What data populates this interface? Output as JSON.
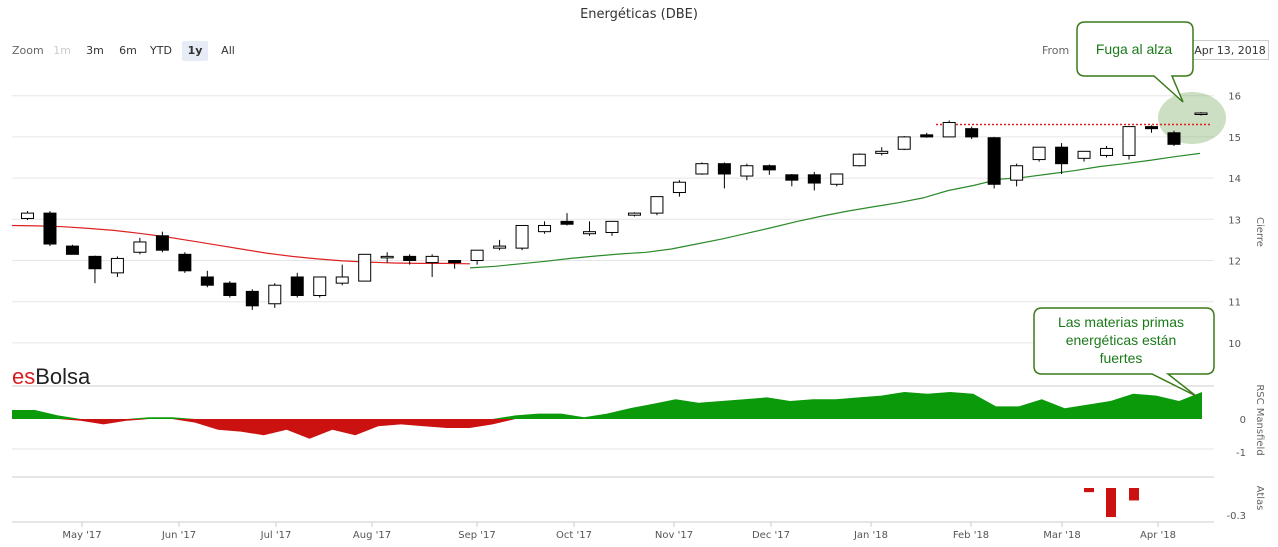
{
  "title": "Energéticas (DBE)",
  "zoom": {
    "label": "Zoom",
    "buttons": [
      {
        "label": "1m",
        "state": "disabled"
      },
      {
        "label": "3m",
        "state": "normal"
      },
      {
        "label": "6m",
        "state": "normal"
      },
      {
        "label": "YTD",
        "state": "normal"
      },
      {
        "label": "1y",
        "state": "active"
      },
      {
        "label": "All",
        "state": "normal"
      }
    ]
  },
  "range": {
    "from_label": "From",
    "from_value": "Apr 13, 2018"
  },
  "logo": {
    "es": "es",
    "bolsa": "Bolsa"
  },
  "annotations": {
    "breakout": "Fuga al alza",
    "strength": [
      "Las materias primas",
      "energéticas están",
      "fuertes"
    ]
  },
  "colors": {
    "up_fill": "#ffffff",
    "down_fill": "#000000",
    "ma_long": "#dd2222",
    "ma_short": "#2a8a2a",
    "rs_pos": "#0a9a0a",
    "rs_neg": "#cc1111",
    "resistance": "#e02020",
    "callout_border": "#3a7a1a"
  },
  "chart_data": [
    {
      "type": "candlestick",
      "name": "price",
      "ylabel": "Cierre",
      "ylim": [
        10,
        16.3
      ],
      "y_ticks": [
        "16",
        "15",
        "14",
        "13",
        "12",
        "11",
        "10"
      ],
      "x_ticks": [
        "May '17",
        "Jun '17",
        "Jul '17",
        "Aug '17",
        "Sep '17",
        "Oct '17",
        "Nov '17",
        "Dec '17",
        "Jan '18",
        "Feb '18",
        "Mar '18",
        "Apr '18"
      ],
      "weeks": [
        "2017-04-21",
        "2017-04-28",
        "2017-05-05",
        "2017-05-12",
        "2017-05-19",
        "2017-05-26",
        "2017-06-02",
        "2017-06-09",
        "2017-06-16",
        "2017-06-23",
        "2017-06-30",
        "2017-07-07",
        "2017-07-14",
        "2017-07-21",
        "2017-07-28",
        "2017-08-04",
        "2017-08-11",
        "2017-08-18",
        "2017-08-25",
        "2017-09-01",
        "2017-09-08",
        "2017-09-15",
        "2017-09-22",
        "2017-09-29",
        "2017-10-06",
        "2017-10-13",
        "2017-10-20",
        "2017-10-27",
        "2017-11-03",
        "2017-11-10",
        "2017-11-17",
        "2017-11-24",
        "2017-12-01",
        "2017-12-08",
        "2017-12-15",
        "2017-12-22",
        "2017-12-29",
        "2018-01-05",
        "2018-01-12",
        "2018-01-19",
        "2018-01-26",
        "2018-02-02",
        "2018-02-09",
        "2018-02-16",
        "2018-02-23",
        "2018-03-02",
        "2018-03-09",
        "2018-03-16",
        "2018-03-23",
        "2018-03-30",
        "2018-04-06",
        "2018-04-13"
      ],
      "ohlc": [
        [
          13.02,
          13.2,
          12.98,
          13.15
        ],
        [
          13.15,
          13.2,
          12.35,
          12.4
        ],
        [
          12.35,
          12.38,
          12.15,
          12.15
        ],
        [
          12.1,
          12.12,
          11.45,
          11.8
        ],
        [
          11.7,
          12.1,
          11.6,
          12.05
        ],
        [
          12.2,
          12.55,
          12.15,
          12.45
        ],
        [
          12.6,
          12.7,
          12.2,
          12.25
        ],
        [
          12.15,
          12.2,
          11.7,
          11.75
        ],
        [
          11.6,
          11.75,
          11.35,
          11.4
        ],
        [
          11.45,
          11.5,
          11.1,
          11.15
        ],
        [
          11.25,
          11.3,
          10.8,
          10.9
        ],
        [
          10.95,
          11.45,
          10.85,
          11.4
        ],
        [
          11.6,
          11.7,
          11.1,
          11.15
        ],
        [
          11.15,
          11.6,
          11.1,
          11.6
        ],
        [
          11.45,
          11.9,
          11.4,
          11.6
        ],
        [
          11.5,
          12.15,
          11.5,
          12.15
        ],
        [
          12.1,
          12.2,
          11.95,
          12.1
        ],
        [
          12.1,
          12.15,
          11.9,
          12.0
        ],
        [
          11.95,
          12.15,
          11.6,
          12.1
        ],
        [
          12.0,
          12.0,
          11.8,
          11.95
        ],
        [
          12.0,
          12.25,
          11.9,
          12.25
        ],
        [
          12.3,
          12.5,
          12.25,
          12.35
        ],
        [
          12.3,
          12.85,
          12.25,
          12.85
        ],
        [
          12.7,
          12.95,
          12.65,
          12.85
        ],
        [
          12.95,
          13.15,
          12.85,
          12.88
        ],
        [
          12.65,
          12.95,
          12.6,
          12.7
        ],
        [
          12.68,
          12.95,
          12.6,
          12.95
        ],
        [
          13.1,
          13.17,
          13.07,
          13.15
        ],
        [
          13.15,
          13.55,
          13.1,
          13.55
        ],
        [
          13.65,
          13.95,
          13.55,
          13.9
        ],
        [
          14.1,
          14.38,
          14.08,
          14.35
        ],
        [
          14.35,
          14.38,
          13.75,
          14.1
        ],
        [
          14.05,
          14.35,
          13.95,
          14.3
        ],
        [
          14.3,
          14.33,
          14.08,
          14.2
        ],
        [
          14.08,
          14.1,
          13.8,
          13.95
        ],
        [
          14.08,
          14.15,
          13.7,
          13.88
        ],
        [
          13.85,
          14.1,
          13.8,
          14.1
        ],
        [
          14.3,
          14.6,
          14.28,
          14.58
        ],
        [
          14.6,
          14.75,
          14.55,
          14.65
        ],
        [
          14.7,
          15.02,
          14.68,
          15.0
        ],
        [
          15.05,
          15.1,
          14.98,
          15.0
        ],
        [
          15.0,
          15.4,
          15.0,
          15.35
        ],
        [
          15.2,
          15.25,
          14.95,
          15.0
        ],
        [
          14.98,
          15.0,
          13.75,
          13.85
        ],
        [
          13.95,
          14.35,
          13.8,
          14.3
        ],
        [
          14.45,
          14.75,
          14.4,
          14.75
        ],
        [
          14.75,
          14.85,
          14.1,
          14.35
        ],
        [
          14.48,
          14.65,
          14.4,
          14.65
        ],
        [
          14.55,
          14.78,
          14.5,
          14.72
        ],
        [
          14.55,
          15.25,
          14.45,
          15.25
        ],
        [
          15.25,
          15.28,
          15.1,
          15.2
        ],
        [
          15.1,
          15.15,
          14.78,
          14.82
        ]
      ],
      "last_week": {
        "open": 15.55,
        "high": 15.6,
        "low": 15.52,
        "close": 15.58
      },
      "resistance": 15.3,
      "ma_long_values": [
        12.85,
        12.84,
        12.82,
        12.78,
        12.73,
        12.66,
        12.58,
        12.48,
        12.38,
        12.28,
        12.18,
        12.1,
        12.04,
        11.99,
        11.96,
        11.94,
        11.93,
        11.93,
        11.92
      ],
      "ma_short_values": [
        11.82,
        11.86,
        11.92,
        11.98,
        12.05,
        12.11,
        12.16,
        12.2,
        12.28,
        12.4,
        12.52,
        12.66,
        12.8,
        12.95,
        13.08,
        13.2,
        13.3,
        13.4,
        13.52,
        13.7,
        13.82,
        13.97,
        14.02,
        14.1,
        14.18,
        14.28,
        14.35,
        14.43,
        14.52,
        14.6
      ]
    },
    {
      "type": "area",
      "name": "RSC Mansfield",
      "ylabel": "RSC Mansfield",
      "y_ticks": [
        "0",
        "-1"
      ],
      "values": [
        0.25,
        0.25,
        0.1,
        -0.05,
        -0.15,
        -0.05,
        0.05,
        0.05,
        -0.1,
        -0.3,
        -0.35,
        -0.45,
        -0.3,
        -0.55,
        -0.3,
        -0.45,
        -0.2,
        -0.15,
        -0.2,
        -0.25,
        -0.25,
        -0.15,
        0.1,
        0.15,
        0.15,
        0.05,
        0.15,
        0.3,
        0.42,
        0.55,
        0.45,
        0.5,
        0.55,
        0.6,
        0.5,
        0.55,
        0.55,
        0.6,
        0.65,
        0.75,
        0.7,
        0.75,
        0.7,
        0.35,
        0.35,
        0.55,
        0.3,
        0.4,
        0.5,
        0.7,
        0.65,
        0.5,
        0.75
      ]
    },
    {
      "type": "bar",
      "name": "Atlas",
      "ylabel": "Atlas",
      "y_ticks": [
        "-0.3"
      ],
      "values": [
        -0.05,
        -0.35,
        -0.15
      ]
    }
  ]
}
